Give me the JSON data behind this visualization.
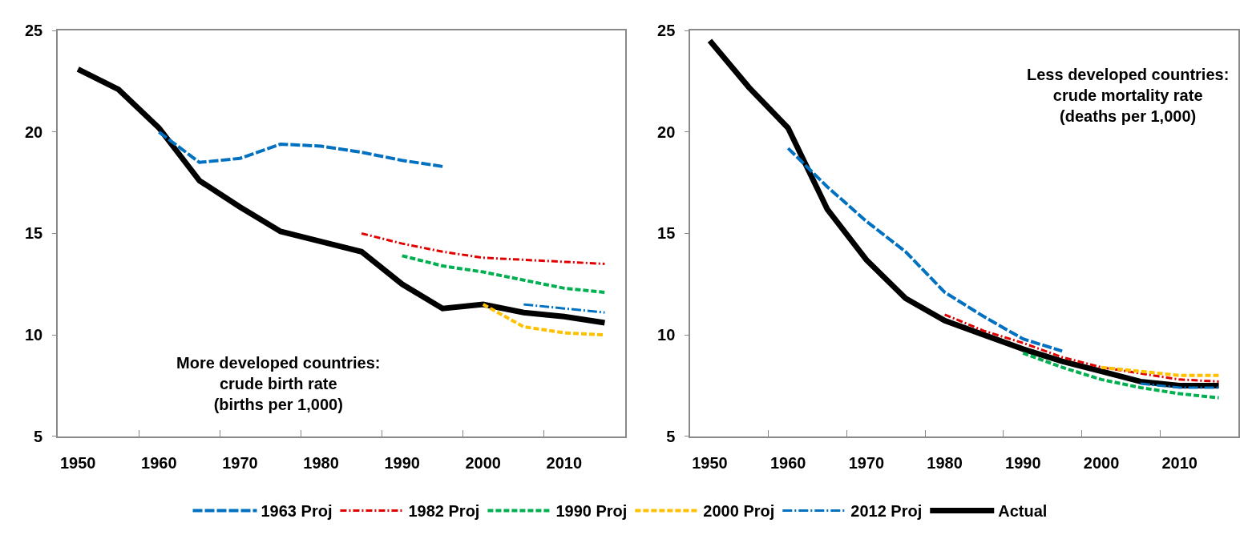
{
  "chart_data": [
    {
      "type": "line",
      "x": [
        1950,
        1955,
        1960,
        1965,
        1970,
        1975,
        1980,
        1985,
        1990,
        1995,
        2000,
        2005,
        2010,
        2015
      ],
      "xlim": [
        1947.5,
        2017.5
      ],
      "xticks": [
        1950,
        {
          "value": 1957.5,
          "label": null
        },
        1960,
        {
          "value": 1967.5,
          "label": null
        },
        1970,
        {
          "value": 1977.5,
          "label": null
        },
        1980,
        {
          "value": 1987.5,
          "label": null
        },
        1990,
        {
          "value": 1997.5,
          "label": null
        },
        2000,
        {
          "value": 2007.5,
          "label": null
        },
        2010
      ],
      "ylim": [
        5,
        25
      ],
      "yticks": [
        5,
        10,
        15,
        20,
        25
      ],
      "legend": "bottom",
      "marker": "none",
      "annotations": [
        "More developed countries:\ncrude birth rate\n(births per 1,000)"
      ],
      "series": [
        {
          "name": "1963 Proj",
          "color": "#0070c0",
          "line_style": "longdash",
          "values": [
            null,
            null,
            20.0,
            18.5,
            18.7,
            19.4,
            19.3,
            19.0,
            18.6,
            18.3,
            null,
            null,
            null,
            null
          ]
        },
        {
          "name": "1982 Proj",
          "color": "#e00000",
          "line_style": "dashdot",
          "values": [
            null,
            null,
            null,
            null,
            null,
            null,
            null,
            15.0,
            14.5,
            14.1,
            13.8,
            13.7,
            13.6,
            13.5
          ]
        },
        {
          "name": "1990 Proj",
          "color": "#00b050",
          "line_style": "dashed",
          "values": [
            null,
            null,
            null,
            null,
            null,
            null,
            null,
            null,
            13.9,
            13.4,
            13.1,
            12.7,
            12.3,
            12.1
          ]
        },
        {
          "name": "2000 Proj",
          "color": "#ffc000",
          "line_style": "dashed",
          "values": [
            null,
            null,
            null,
            null,
            null,
            null,
            null,
            null,
            null,
            null,
            11.5,
            10.4,
            10.1,
            10.0
          ]
        },
        {
          "name": "2012 Proj",
          "color": "#0070c0",
          "line_style": "longdashdot",
          "values": [
            null,
            null,
            null,
            null,
            null,
            null,
            null,
            null,
            null,
            null,
            null,
            11.5,
            11.3,
            11.1
          ]
        },
        {
          "name": "Actual",
          "color": "#000000",
          "line_style": "solid",
          "values": [
            23.1,
            22.1,
            20.2,
            17.6,
            16.3,
            15.1,
            14.6,
            14.1,
            12.5,
            11.3,
            11.5,
            11.1,
            10.9,
            10.6
          ]
        }
      ]
    },
    {
      "type": "line",
      "x": [
        1950,
        1955,
        1960,
        1965,
        1970,
        1975,
        1980,
        1985,
        1990,
        1995,
        2000,
        2005,
        2010,
        2015
      ],
      "xlim": [
        1947.5,
        2017.5
      ],
      "xticks": [
        1950,
        {
          "value": 1957.5,
          "label": null
        },
        1960,
        {
          "value": 1967.5,
          "label": null
        },
        1970,
        {
          "value": 1977.5,
          "label": null
        },
        1980,
        {
          "value": 1987.5,
          "label": null
        },
        1990,
        {
          "value": 1997.5,
          "label": null
        },
        2000,
        {
          "value": 2007.5,
          "label": null
        },
        2010
      ],
      "ylim": [
        5,
        25
      ],
      "yticks": [
        5,
        10,
        15,
        20,
        25
      ],
      "legend": "bottom",
      "marker": "none",
      "annotations": [
        "Less developed countries:\ncrude mortality rate\n(deaths per 1,000)"
      ],
      "series": [
        {
          "name": "1963 Proj",
          "color": "#0070c0",
          "line_style": "longdash",
          "values": [
            null,
            null,
            19.2,
            17.3,
            15.6,
            14.1,
            12.1,
            10.9,
            9.8,
            9.2,
            null,
            null,
            null,
            null
          ]
        },
        {
          "name": "1982 Proj",
          "color": "#e00000",
          "line_style": "dashdot",
          "values": [
            null,
            null,
            null,
            null,
            null,
            null,
            11.0,
            10.2,
            9.6,
            8.9,
            8.4,
            8.1,
            7.8,
            7.7
          ]
        },
        {
          "name": "1990 Proj",
          "color": "#00b050",
          "line_style": "dashed",
          "values": [
            null,
            null,
            null,
            null,
            null,
            null,
            null,
            null,
            9.1,
            8.4,
            7.8,
            7.4,
            7.1,
            6.9
          ]
        },
        {
          "name": "2000 Proj",
          "color": "#ffc000",
          "line_style": "dashed",
          "values": [
            null,
            null,
            null,
            null,
            null,
            null,
            null,
            null,
            null,
            null,
            8.4,
            8.2,
            8.0,
            8.0
          ]
        },
        {
          "name": "2012 Proj",
          "color": "#0070c0",
          "line_style": "longdashdot",
          "values": [
            null,
            null,
            null,
            null,
            null,
            null,
            null,
            null,
            null,
            null,
            null,
            7.6,
            7.4,
            7.4
          ]
        },
        {
          "name": "Actual",
          "color": "#000000",
          "line_style": "solid",
          "values": [
            24.5,
            22.2,
            20.2,
            16.2,
            13.7,
            11.8,
            10.7,
            10.0,
            9.3,
            8.7,
            8.2,
            7.7,
            7.5,
            7.5
          ]
        }
      ]
    }
  ]
}
